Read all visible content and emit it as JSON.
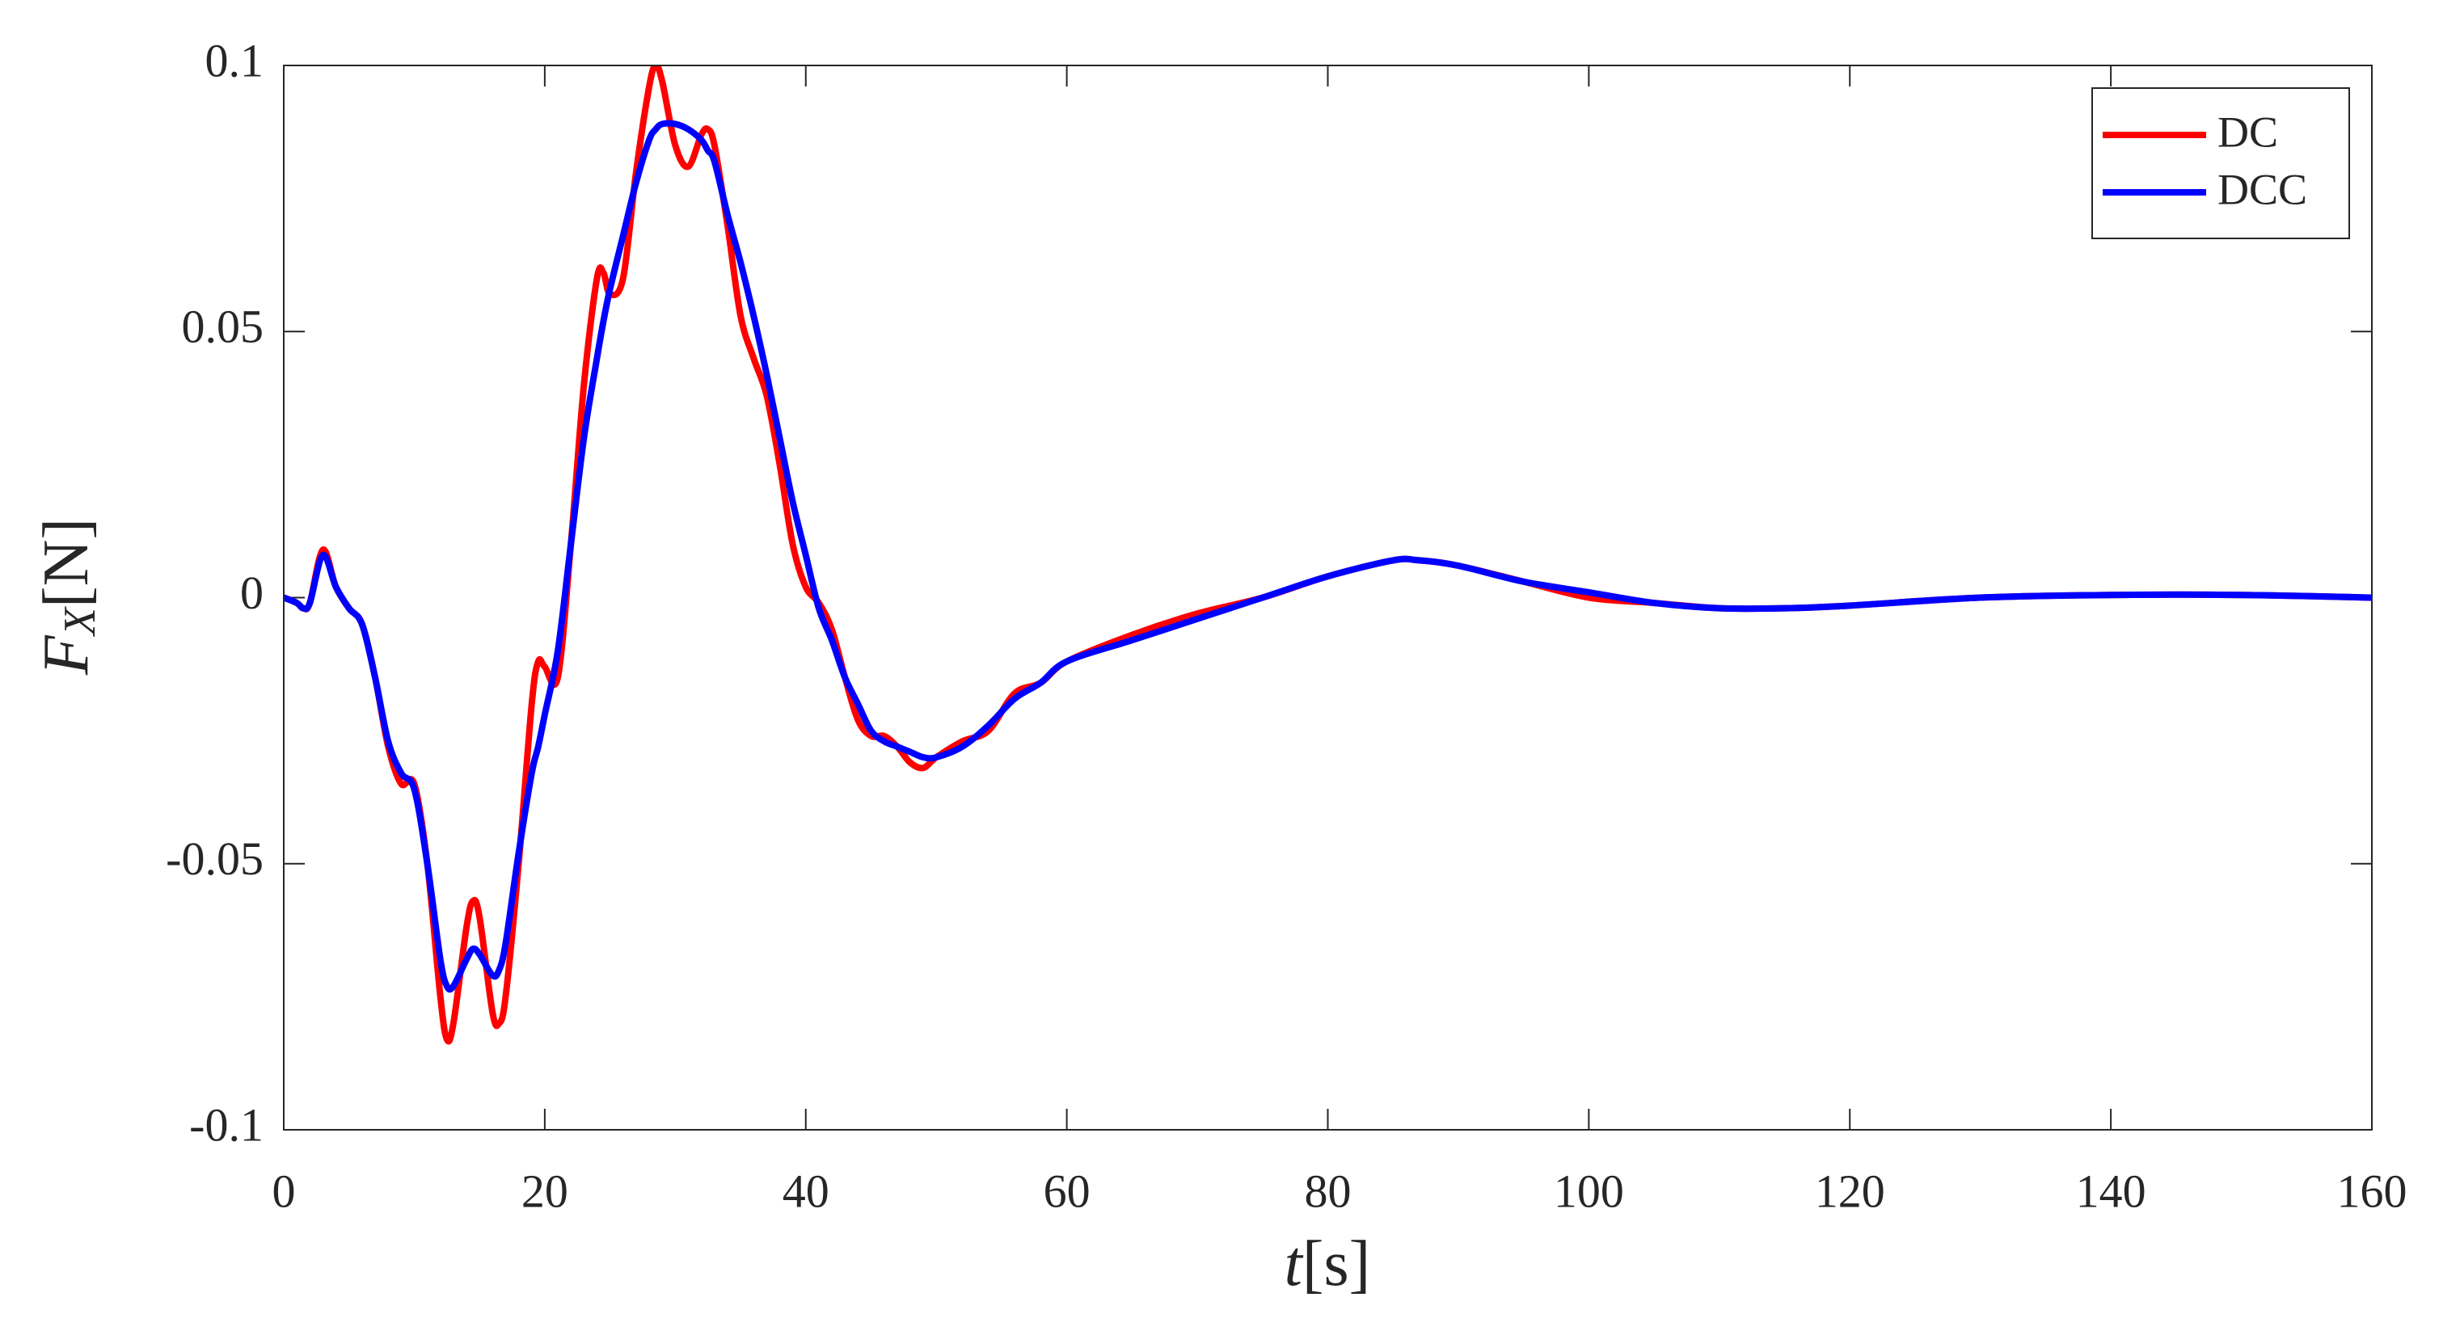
{
  "chart_data": {
    "type": "line",
    "xlabel": {
      "main": "t",
      "rest": "[s]"
    },
    "ylabel": {
      "main": "F",
      "sub": "X",
      "rest": "[N]"
    },
    "xlim": [
      0,
      160
    ],
    "ylim": [
      -0.1,
      0.1
    ],
    "xticks": [
      0,
      20,
      40,
      60,
      80,
      100,
      120,
      140,
      160
    ],
    "yticks": [
      -0.1,
      -0.05,
      0,
      0.05,
      0.1
    ],
    "grid": false,
    "legend": "northeast",
    "x": [
      0,
      1,
      1.5,
      2,
      3,
      4,
      5,
      6,
      7,
      8,
      9,
      10,
      11,
      12,
      12.5,
      13,
      14,
      14.5,
      15,
      16,
      16.5,
      17,
      18,
      19,
      19.5,
      20,
      21,
      22,
      23,
      24,
      24.5,
      25,
      26,
      27,
      28,
      28.5,
      29,
      30,
      31,
      32,
      32.5,
      33,
      34,
      35,
      36,
      37,
      38,
      39,
      40,
      41,
      42,
      43,
      44,
      45,
      46,
      47,
      48,
      49,
      50,
      52,
      54,
      56,
      58,
      60,
      65,
      70,
      75,
      80,
      85,
      87,
      90,
      95,
      100,
      105,
      110,
      115,
      120,
      130,
      140,
      150,
      160
    ],
    "series": [
      {
        "name": "DC",
        "color": "#ff0000",
        "values": [
          0,
          -0.001,
          -0.002,
          -0.001,
          0.009,
          0.002,
          -0.002,
          -0.005,
          -0.015,
          -0.028,
          -0.035,
          -0.035,
          -0.05,
          -0.075,
          -0.083,
          -0.08,
          -0.062,
          -0.057,
          -0.06,
          -0.078,
          -0.08,
          -0.075,
          -0.05,
          -0.02,
          -0.012,
          -0.013,
          -0.015,
          0.01,
          0.04,
          0.06,
          0.061,
          0.057,
          0.06,
          0.08,
          0.096,
          0.1,
          0.097,
          0.085,
          0.081,
          0.087,
          0.088,
          0.085,
          0.07,
          0.053,
          0.045,
          0.038,
          0.025,
          0.01,
          0.002,
          -0.001,
          -0.006,
          -0.015,
          -0.023,
          -0.026,
          -0.026,
          -0.028,
          -0.031,
          -0.032,
          -0.03,
          -0.027,
          -0.025,
          -0.018,
          -0.016,
          -0.012,
          -0.007,
          -0.003,
          0,
          0.004,
          0.007,
          0.007,
          0.006,
          0.003,
          0,
          -0.001,
          -0.002,
          -0.002,
          -0.0015,
          0,
          0.0005,
          0.0005,
          0
        ]
      },
      {
        "name": "DCC",
        "color": "#0000ff",
        "values": [
          0,
          -0.001,
          -0.002,
          -0.001,
          0.008,
          0.002,
          -0.002,
          -0.005,
          -0.015,
          -0.027,
          -0.033,
          -0.036,
          -0.05,
          -0.068,
          -0.073,
          -0.073,
          -0.068,
          -0.066,
          -0.067,
          -0.071,
          -0.07,
          -0.065,
          -0.048,
          -0.033,
          -0.028,
          -0.022,
          -0.01,
          0.01,
          0.03,
          0.045,
          0.052,
          0.058,
          0.068,
          0.078,
          0.086,
          0.088,
          0.089,
          0.089,
          0.088,
          0.086,
          0.084,
          0.082,
          0.072,
          0.063,
          0.053,
          0.042,
          0.03,
          0.018,
          0.008,
          -0.002,
          -0.008,
          -0.015,
          -0.02,
          -0.025,
          -0.027,
          -0.028,
          -0.029,
          -0.03,
          -0.03,
          -0.028,
          -0.024,
          -0.019,
          -0.016,
          -0.012,
          -0.008,
          -0.004,
          0,
          0.004,
          0.007,
          0.007,
          0.006,
          0.003,
          0.001,
          -0.001,
          -0.002,
          -0.002,
          -0.0015,
          0,
          0.0005,
          0.0005,
          0
        ]
      }
    ]
  }
}
